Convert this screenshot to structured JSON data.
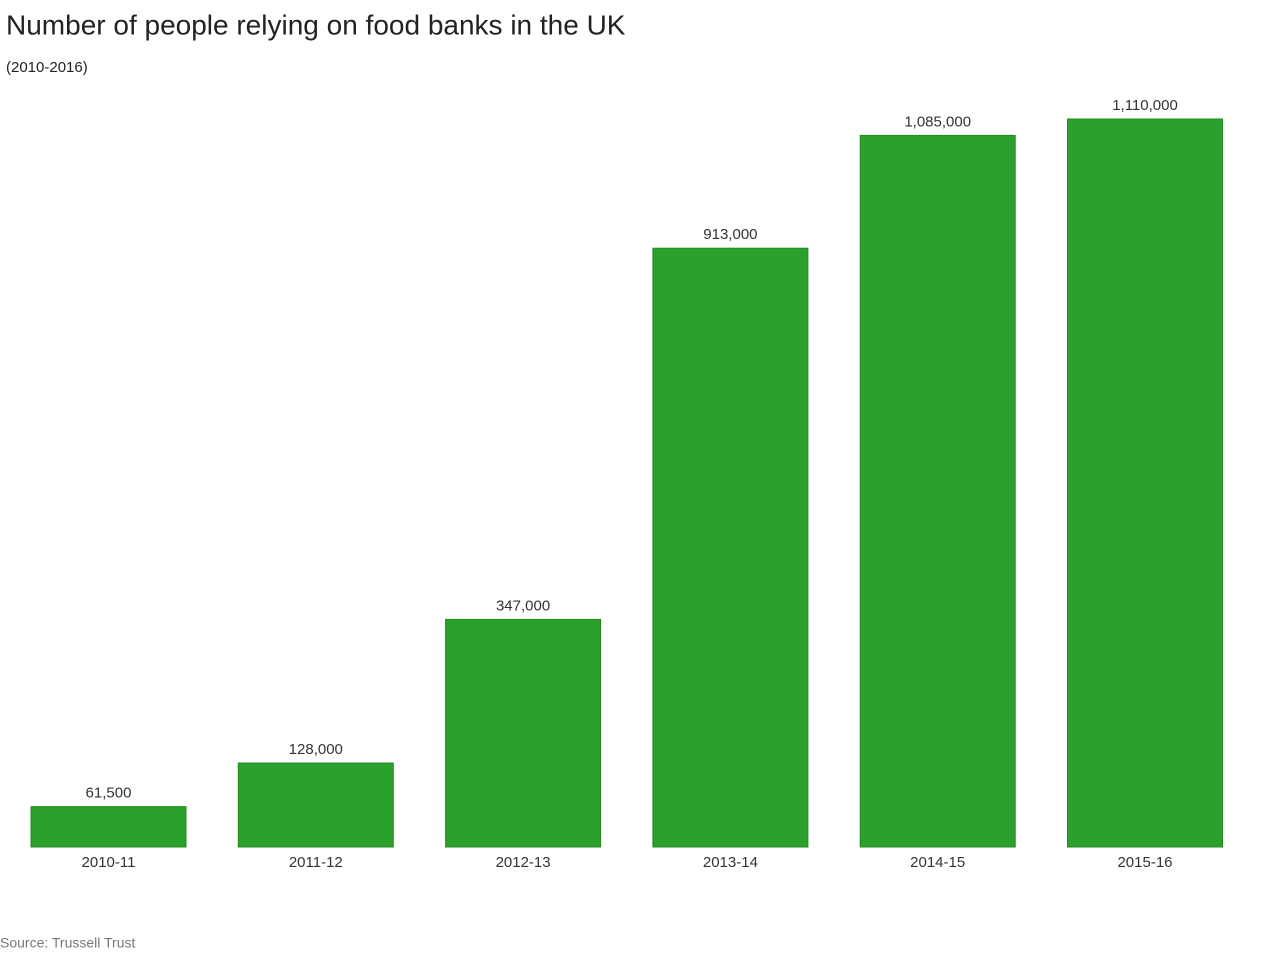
{
  "chart_data": {
    "type": "bar",
    "title": "Number of people relying on food banks in the UK",
    "subtitle": "(2010-2016)",
    "source": "Source: Trussell Trust",
    "categories": [
      "2010-11",
      "2011-12",
      "2012-13",
      "2013-14",
      "2014-15",
      "2015-16"
    ],
    "values": [
      61500,
      128000,
      347000,
      913000,
      1085000,
      1110000
    ],
    "value_labels": [
      "61,500",
      "128,000",
      "347,000",
      "913,000",
      "1,085,000",
      "1,110,000"
    ],
    "color": "#2ca02c"
  }
}
